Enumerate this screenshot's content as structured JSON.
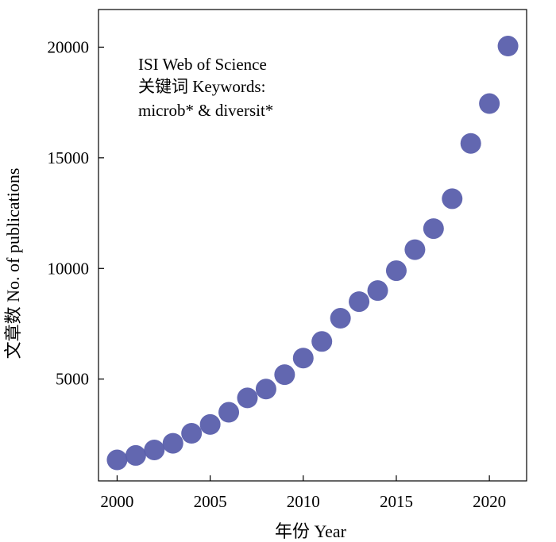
{
  "chart_data": {
    "type": "scatter",
    "xlabel": "年份 Year",
    "ylabel": "文章数 No. of publications",
    "xlim": [
      1999.0,
      2022.0
    ],
    "ylim": [
      400,
      21700
    ],
    "x_ticks": [
      2000,
      2005,
      2010,
      2015,
      2020
    ],
    "y_ticks": [
      5000,
      10000,
      15000,
      20000
    ],
    "grid": false,
    "marker_color": "#5a5fac",
    "annotation": [
      "ISI Web of Science",
      "关键词 Keywords:",
      "microb* & diversit*"
    ],
    "series": [
      {
        "x": [
          2000,
          2001,
          2002,
          2003,
          2004,
          2005,
          2006,
          2007,
          2008,
          2009,
          2010,
          2011,
          2012,
          2013,
          2014,
          2015,
          2016,
          2017,
          2018,
          2019,
          2020,
          2021
        ],
        "y": [
          1350,
          1550,
          1800,
          2100,
          2550,
          2950,
          3500,
          4150,
          4550,
          5200,
          5950,
          6700,
          7750,
          8500,
          9000,
          9900,
          10850,
          11800,
          13150,
          15650,
          17450,
          20050
        ]
      }
    ]
  }
}
